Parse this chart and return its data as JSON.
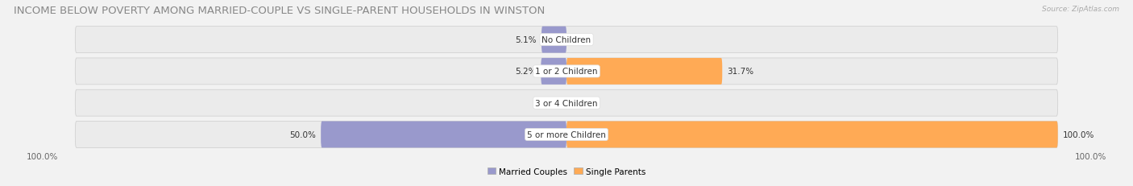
{
  "title": "INCOME BELOW POVERTY AMONG MARRIED-COUPLE VS SINGLE-PARENT HOUSEHOLDS IN WINSTON",
  "source": "Source: ZipAtlas.com",
  "categories": [
    "No Children",
    "1 or 2 Children",
    "3 or 4 Children",
    "5 or more Children"
  ],
  "married_values": [
    5.1,
    5.2,
    0.0,
    50.0
  ],
  "single_values": [
    0.0,
    31.7,
    0.0,
    100.0
  ],
  "married_color": "#9999CC",
  "single_color": "#FFAA55",
  "bar_bg_color": "#E0E0E8",
  "bar_height": 0.62,
  "bar_gap": 0.12,
  "max_value": 100.0,
  "title_fontsize": 9.5,
  "label_fontsize": 7.5,
  "cat_fontsize": 7.5,
  "axis_label_fontsize": 7.5,
  "background_color": "#F2F2F2",
  "row_bg_color": "#EBEBEB",
  "legend_labels": [
    "Married Couples",
    "Single Parents"
  ]
}
